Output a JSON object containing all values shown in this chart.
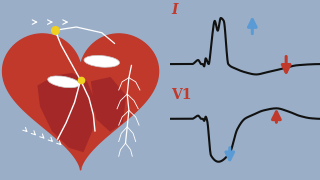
{
  "background_color": "#9aafc7",
  "heart_color": "#c0392b",
  "heart_dark": "#8b0000",
  "chamber_color": "#a52828",
  "white": "#ffffff",
  "yellow": "#f0d020",
  "ecg_color": "#111111",
  "ecg_lw": 1.5,
  "label_I_color": "#c0392b",
  "label_V1_color": "#c0392b",
  "arrow_blue": "#5b9bd5",
  "arrow_red": "#c0392b"
}
